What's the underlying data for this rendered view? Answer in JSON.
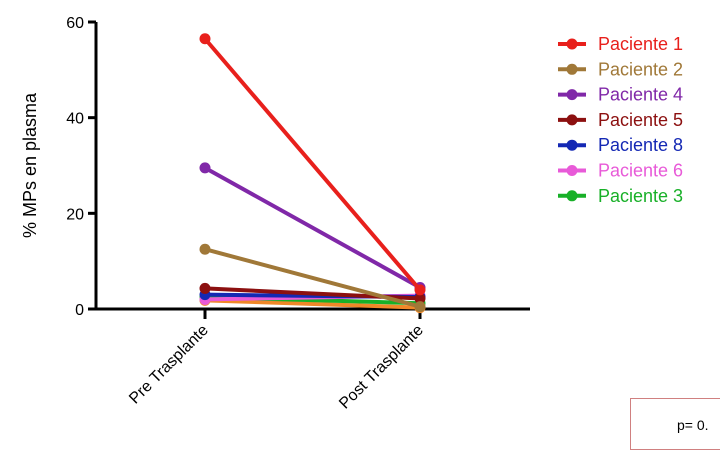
{
  "chart_data": {
    "type": "line",
    "categories": [
      "Pre Trasplante",
      "Post Trasplante"
    ],
    "ylabel": "% MPs en plasma",
    "xlabel": "",
    "ylim": [
      0,
      60
    ],
    "yticks": [
      0,
      20,
      40,
      60
    ],
    "grid": false,
    "legend_position": "right",
    "series": [
      {
        "name": "Paciente 1",
        "color": "#e8201c",
        "values": [
          56.5,
          4.0
        ]
      },
      {
        "name": "Paciente 2",
        "color": "#a07838",
        "values": [
          12.5,
          0.5
        ]
      },
      {
        "name": "Paciente 4",
        "color": "#8028a8",
        "values": [
          29.5,
          4.5
        ]
      },
      {
        "name": "Paciente 5",
        "color": "#8c1010",
        "values": [
          4.3,
          2.2
        ]
      },
      {
        "name": "Paciente 8",
        "color": "#1428b4",
        "values": [
          3.0,
          2.5
        ]
      },
      {
        "name": "Paciente 6",
        "color": "#e85ad8",
        "values": [
          2.0,
          2.8
        ]
      },
      {
        "name": "Paciente 3",
        "color": "#18b028",
        "values": [
          2.5,
          1.2
        ]
      },
      {
        "name": "",
        "color": "#f08828",
        "values": [
          1.8,
          0.3
        ]
      }
    ]
  },
  "annotation": {
    "text": "p= 0."
  }
}
